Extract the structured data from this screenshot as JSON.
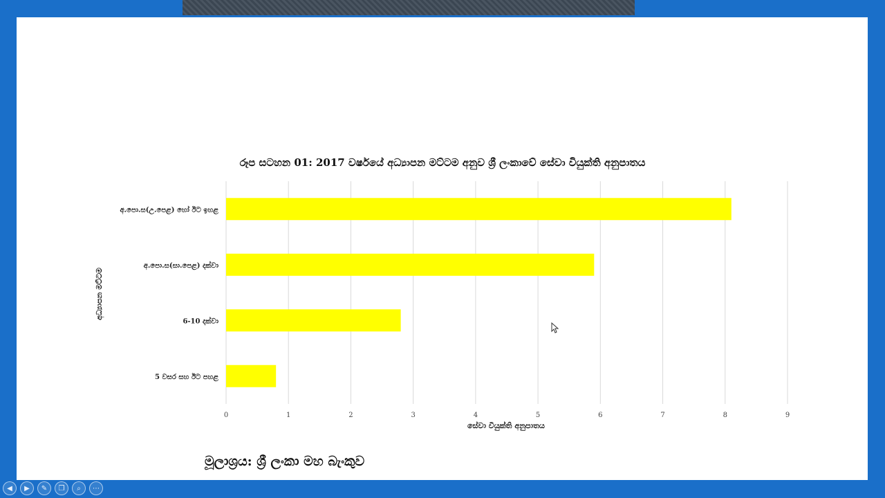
{
  "toolbar": {
    "icons": [
      "prev-icon",
      "next-icon",
      "pen-icon",
      "slides-icon",
      "zoom-icon",
      "more-icon"
    ],
    "glyphs": [
      "◀",
      "▶",
      "✎",
      "❐",
      "⌕",
      "⋯"
    ]
  },
  "slide": {
    "source_text": "මූලාශ්‍රය: ශ්‍රී ලංකා මහ බැංකුව"
  },
  "chart_data": {
    "type": "bar",
    "orientation": "horizontal",
    "title": "රූප සටහන 01: 2017 වර්ෂයේ අධ්‍යාපන මට්ටම අනුව ශ්‍රී ලංකාවේ සේවා වියුක්ති අනුපාතය",
    "xlabel": "සේවා වියුක්ති අනුපාතය",
    "ylabel": "අධ්‍යාපන මට්ටම",
    "categories": [
      "අ.පො.ස(උ.පෙළ) හෝ ඊට ඉහළ",
      "අ.පො.ස(සා.පෙළ) දක්වා",
      "6-10  දක්වා",
      "5 වසර සහ ඊට පහළ"
    ],
    "values": [
      8.1,
      5.9,
      2.8,
      0.8
    ],
    "xlim": [
      0,
      9
    ],
    "xticks": [
      0,
      1,
      2,
      3,
      4,
      5,
      6,
      7,
      8,
      9
    ],
    "bar_color": "#ffff00",
    "grid": true,
    "legend": "none"
  }
}
